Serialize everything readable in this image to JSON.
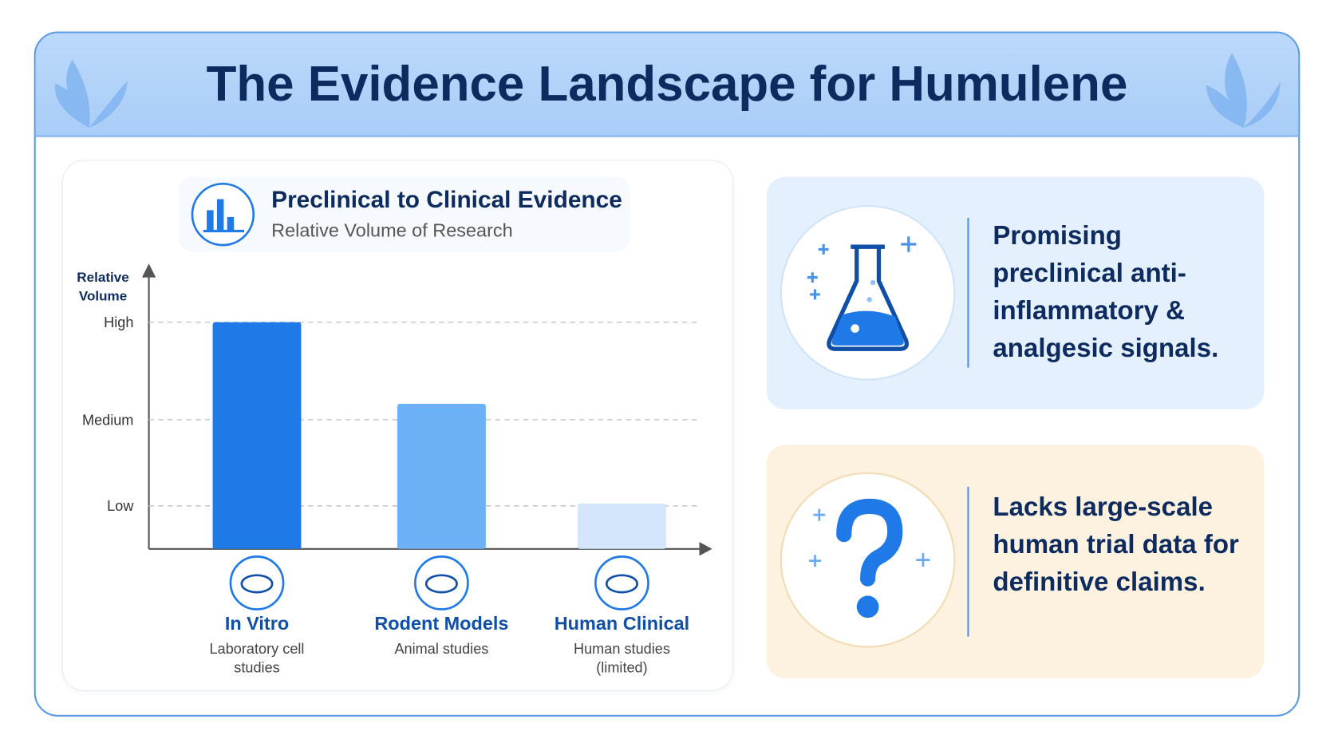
{
  "header": {
    "title": "The Evidence Landscape for Humulene"
  },
  "chart_data": {
    "type": "bar",
    "title": "Preclinical to Clinical Evidence",
    "subtitle": "Relative Volume of Research",
    "y_label": "Relative Volume",
    "categories": [
      "In Vitro",
      "Rodent Models",
      "Human Clinical"
    ],
    "category_descriptions": [
      "Laboratory cell studies",
      "Animal studies",
      "Human studies (limited)"
    ],
    "values": [
      100,
      64,
      20
    ],
    "colors": [
      "#1f7ae8",
      "#6cb0f6",
      "#d3e6fb"
    ],
    "ylim": [
      0,
      110
    ],
    "yticks": [
      {
        "value": 19,
        "label": "Low"
      },
      {
        "value": 57,
        "label": "Medium"
      },
      {
        "value": 100,
        "label": "High"
      }
    ],
    "grid": true
  },
  "cards": [
    {
      "text": "Promising preclinical anti-inflammatory & analgesic signals."
    },
    {
      "text": "Lacks large-scale human trial data for definitive claims."
    }
  ]
}
